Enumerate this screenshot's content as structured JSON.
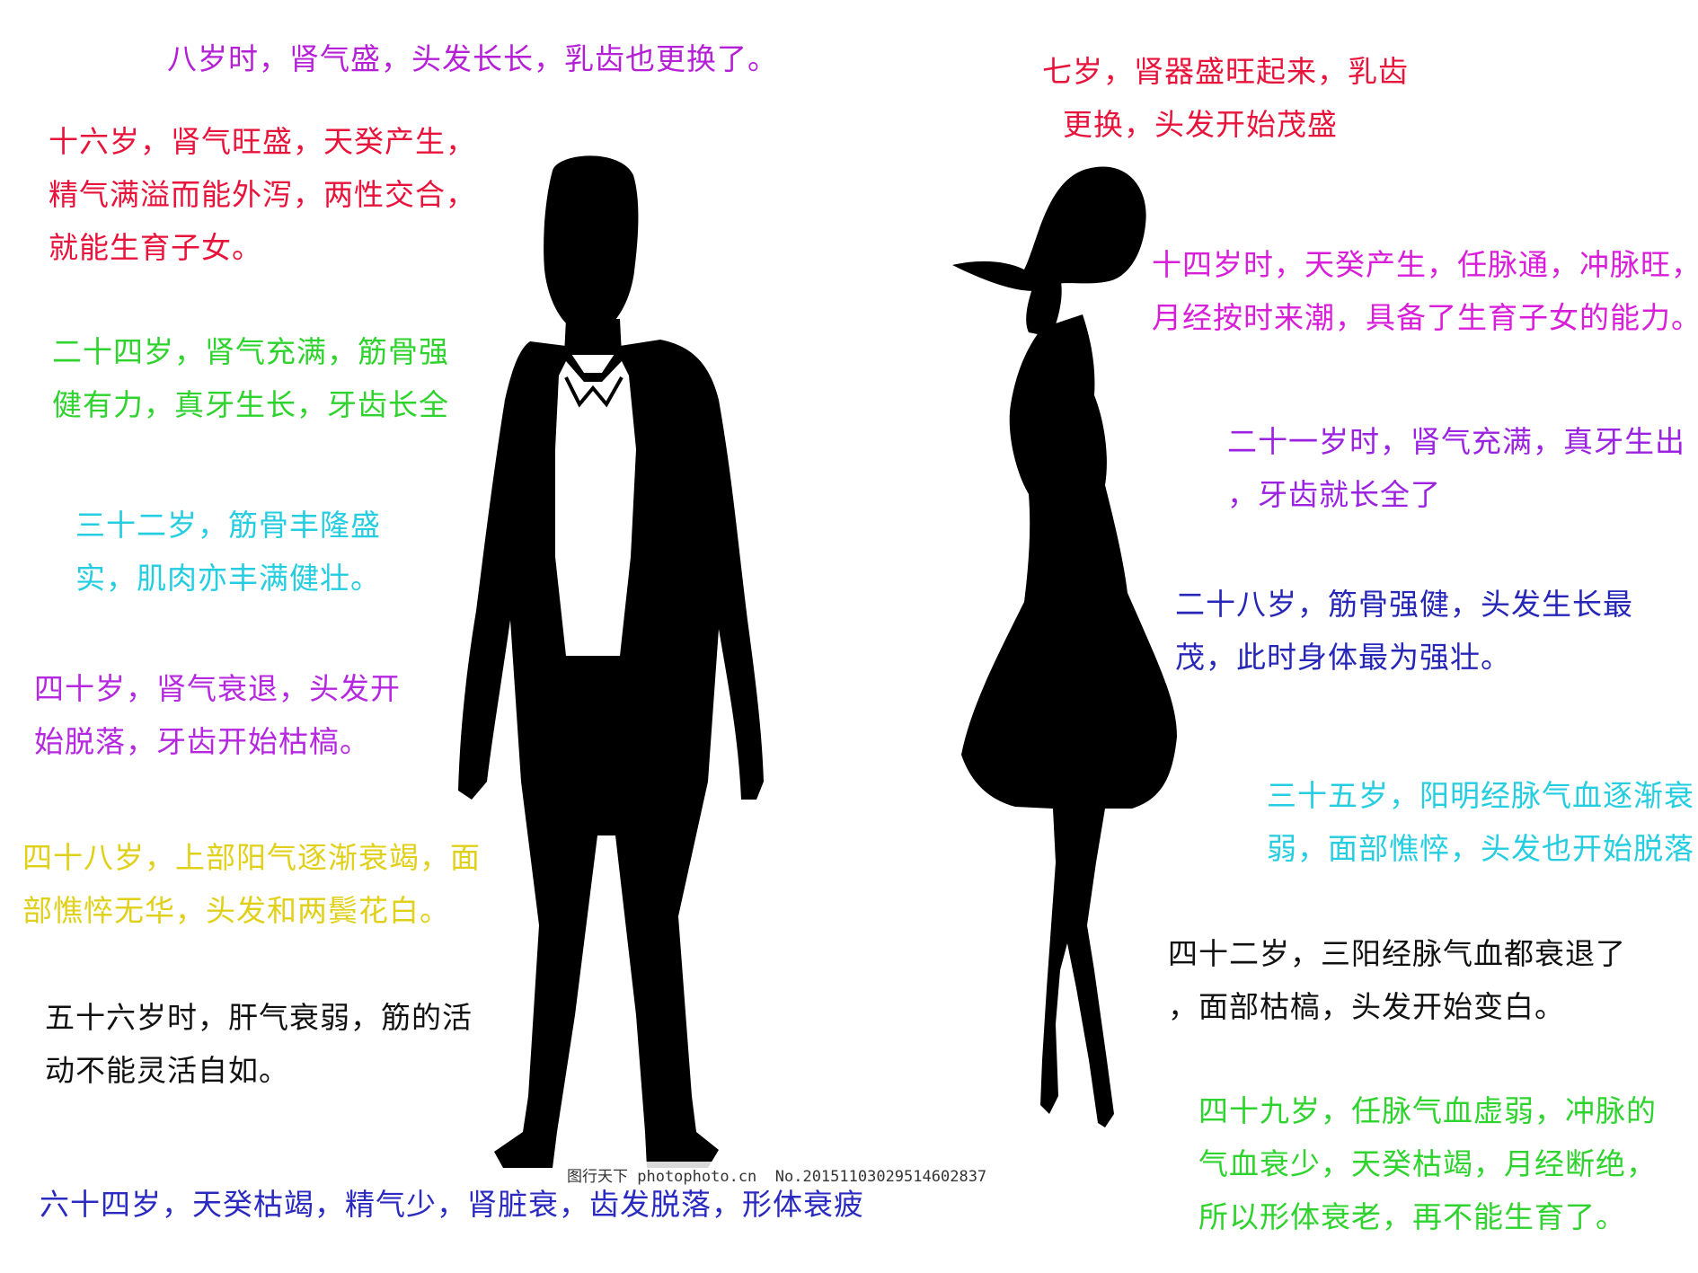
{
  "colors": {
    "silhouette": "#000000",
    "background": "#ffffff",
    "shirt": "#ffffff",
    "purple": "#b51fd6",
    "crimson": "#e8133b",
    "green": "#2ed32e",
    "cyan": "#24cde0",
    "violet": "#b528e0",
    "yellow": "#e0d01a",
    "black": "#111111",
    "navy": "#2a2ac0",
    "magenta": "#d81ed8",
    "blue_violet": "#9b22e0",
    "dark_blue": "#2626b8"
  },
  "male": {
    "figure_name": "male-silhouette",
    "notes": [
      {
        "id": "age-8",
        "text": "八岁时，肾气盛，头发长长，乳齿也更换了。",
        "color": "#b51fd6"
      },
      {
        "id": "age-16",
        "text": "十六岁，肾气旺盛，天癸产生，\n精气满溢而能外泻，两性交合，\n就能生育子女。",
        "color": "#e8133b"
      },
      {
        "id": "age-24",
        "text": "二十四岁，肾气充满，筋骨强\n健有力，真牙生长，牙齿长全",
        "color": "#2ed32e"
      },
      {
        "id": "age-32",
        "text": "三十二岁，筋骨丰隆盛\n实，肌肉亦丰满健壮。",
        "color": "#24cde0"
      },
      {
        "id": "age-40",
        "text": "四十岁，肾气衰退，头发开\n始脱落，牙齿开始枯槁。",
        "color": "#b528e0"
      },
      {
        "id": "age-48",
        "text": "四十八岁，上部阳气逐渐衰竭，面\n部憔悴无华，头发和两鬓花白。",
        "color": "#e0d01a"
      },
      {
        "id": "age-56",
        "text": "五十六岁时，肝气衰弱，筋的活\n动不能灵活自如。",
        "color": "#111111"
      },
      {
        "id": "age-64",
        "text": "六十四岁，天癸枯竭，精气少，肾脏衰，齿发脱落，形体衰疲",
        "color": "#2a2ac0"
      }
    ]
  },
  "female": {
    "figure_name": "female-silhouette",
    "notes": [
      {
        "id": "age-7",
        "text": "七岁，肾器盛旺起来，乳齿\n  更换，头发开始茂盛",
        "color": "#e8133b"
      },
      {
        "id": "age-14",
        "text": "十四岁时，天癸产生，任脉通，冲脉旺，\n月经按时来潮，具备了生育子女的能力。",
        "color": "#d81ed8"
      },
      {
        "id": "age-21",
        "text": "二十一岁时，肾气充满，真牙生出\n，牙齿就长全了",
        "color": "#9b22e0"
      },
      {
        "id": "age-28",
        "text": "二十八岁，筋骨强健，头发生长最\n茂，此时身体最为强壮。",
        "color": "#2626b8"
      },
      {
        "id": "age-35",
        "text": "三十五岁，阳明经脉气血逐渐衰\n弱，面部憔悴，头发也开始脱落",
        "color": "#24cde0"
      },
      {
        "id": "age-42",
        "text": "四十二岁，三阳经脉气血都衰退了\n，面部枯槁，头发开始变白。",
        "color": "#111111"
      },
      {
        "id": "age-49",
        "text": "四十九岁，任脉气血虚弱，冲脉的\n气血衰少，天癸枯竭，月经断绝，\n所以形体衰老，再不能生育了。",
        "color": "#2ed32e"
      }
    ]
  },
  "watermark": {
    "text": "图行天下 photophoto.cn  No.20151103029514602837"
  }
}
